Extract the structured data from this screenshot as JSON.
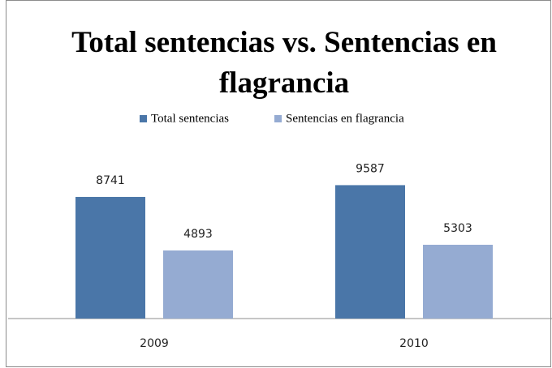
{
  "chart_data": {
    "type": "bar",
    "title": "Total sentencias vs. Sentencias en flagrancia",
    "categories": [
      "2009",
      "2010"
    ],
    "series": [
      {
        "name": "Total sentencias",
        "color": "#4a76a8",
        "values": [
          8741,
          9587
        ]
      },
      {
        "name": "Sentencias en flagrancia",
        "color": "#95abd2",
        "values": [
          4893,
          5303
        ]
      }
    ],
    "ylim": [
      0,
      12000
    ],
    "legend": "top"
  }
}
